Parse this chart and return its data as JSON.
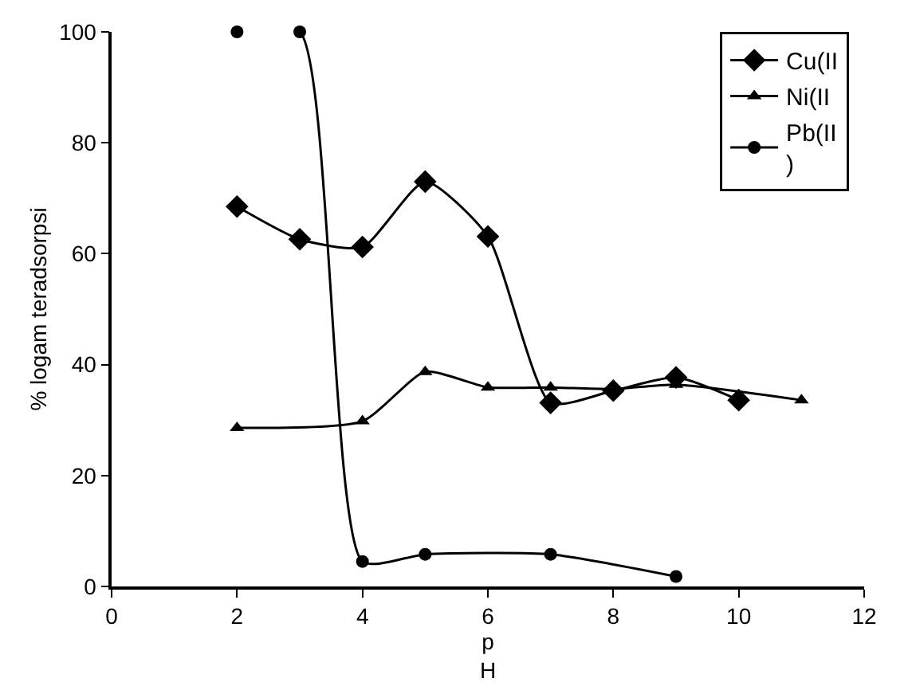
{
  "chart_data": {
    "type": "line",
    "xlabel": "p\nH",
    "ylabel": "% logam teradsorpsi",
    "xlim": [
      0,
      12
    ],
    "xticks": [
      0,
      2,
      4,
      6,
      8,
      10,
      12
    ],
    "ylim": [
      0,
      100
    ],
    "yticks": [
      0,
      20,
      40,
      60,
      80,
      100
    ],
    "legend": "top right",
    "line_style": "solid",
    "series": [
      {
        "name": "Cu(II",
        "color": "#000000",
        "marker": "diamond",
        "x": [
          2,
          3,
          4,
          5,
          6,
          7,
          8,
          9,
          10
        ],
        "values": [
          68.5,
          62.6,
          61.2,
          73.0,
          63.1,
          33.1,
          35.3,
          37.7,
          33.6
        ]
      },
      {
        "name": "Ni(II",
        "color": "#000000",
        "marker": "triangle",
        "x": [
          2,
          4,
          5,
          6,
          7,
          8,
          9,
          11
        ],
        "values": [
          28.6,
          29.8,
          38.7,
          35.9,
          35.9,
          35.6,
          36.4,
          33.6
        ]
      },
      {
        "name": "Pb(II\n)",
        "color": "#000000",
        "marker": "circle",
        "x": [
          2,
          3,
          4,
          5,
          7,
          9
        ],
        "values": [
          100,
          100,
          4.5,
          5.8,
          5.8,
          1.8
        ]
      }
    ]
  }
}
